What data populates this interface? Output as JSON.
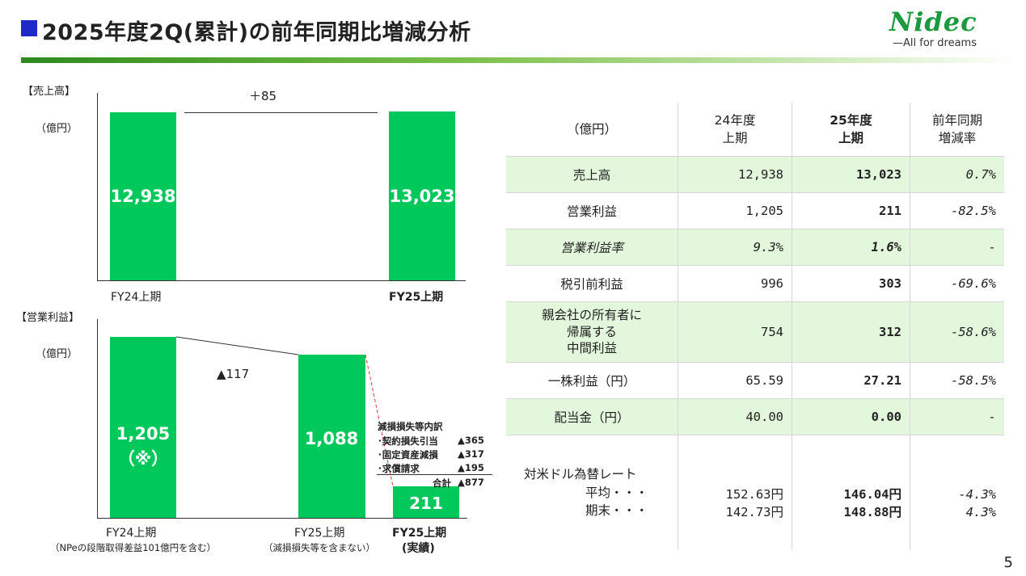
{
  "header": {
    "title": "2025年度2Q(累計)の前年同期比増減分析",
    "logo_text": "Nidec",
    "logo_tagline": "—All for dreams"
  },
  "page_number": "5",
  "chart_data": [
    {
      "type": "bar",
      "title": "【売上高】",
      "unit": "（億円）",
      "categories": [
        "FY24上期",
        "FY25上期"
      ],
      "values": [
        12938,
        13023
      ],
      "value_labels": [
        "12,938",
        "13,023"
      ],
      "change_label": "＋85",
      "ylim": [
        0,
        14500
      ]
    },
    {
      "type": "bar",
      "title": "【営業利益】",
      "unit": "（億円）",
      "categories": [
        "FY24上期",
        "FY25上期",
        "FY25上期"
      ],
      "category_notes": [
        "（NPeの段階取得差益101億円を含む）",
        "（減損損失等を含まない）",
        "(実績)"
      ],
      "values": [
        1205,
        1088,
        211
      ],
      "value_labels": [
        "1,205",
        "1,088",
        "211"
      ],
      "value_note_first": "（※）",
      "change_label": "▲117",
      "ylim": [
        0,
        1330
      ],
      "breakdown": {
        "title": "減損損失等内訳",
        "items": [
          {
            "label": "･契約損失引当",
            "value": "▲365"
          },
          {
            "label": "･固定資産減損",
            "value": "▲317"
          },
          {
            "label": "･求償請求",
            "value": "▲195"
          }
        ],
        "total_label": "合計",
        "total_value": "▲877"
      }
    }
  ],
  "table": {
    "headers": [
      "（億円）",
      "24年度\n上期",
      "25年度\n上期",
      "前年同期\n増減率"
    ],
    "rows": [
      {
        "label": "売上高",
        "fy24": "12,938",
        "fy25": "13,023",
        "rate": "0.7%"
      },
      {
        "label": "営業利益",
        "fy24": "1,205",
        "fy25": "211",
        "rate": "-82.5%"
      },
      {
        "label": "営業利益率",
        "fy24": "9.3%",
        "fy25": "1.6%",
        "rate": "-"
      },
      {
        "label": "税引前利益",
        "fy24": "996",
        "fy25": "303",
        "rate": "-69.6%"
      },
      {
        "label": "親会社の所有者に\n帰属する\n中間利益",
        "fy24": "754",
        "fy25": "312",
        "rate": "-58.6%"
      },
      {
        "label": "一株利益（円）",
        "fy24": "65.59",
        "fy25": "27.21",
        "rate": "-58.5%"
      },
      {
        "label": "配当金（円）",
        "fy24": "40.00",
        "fy25": "0.00",
        "rate": "-"
      }
    ],
    "fx": {
      "label": "対米ドル為替レート",
      "avg_label": "平均・・・",
      "end_label": "期末・・・",
      "fy24_avg": "152.63円",
      "fy24_end": "142.73円",
      "fy25_avg": "146.04円",
      "fy25_end": "148.88円",
      "rate_avg": "-4.3%",
      "rate_end": "4.3%"
    }
  }
}
